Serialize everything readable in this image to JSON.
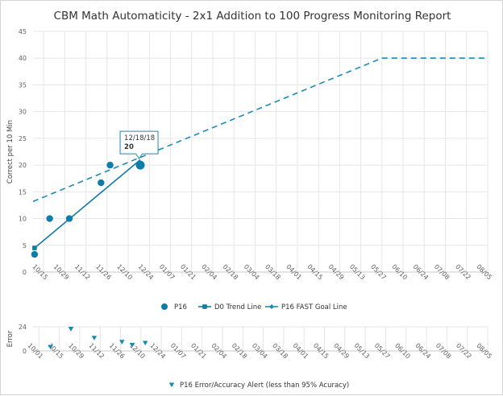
{
  "chart_data": [
    {
      "type": "line",
      "title": "CBM Math Automaticity - 2x1 Addition to 100 Progress Monitoring Report",
      "ylabel": "Correct per 10 Min",
      "ylim": [
        0,
        45
      ],
      "yticks": [
        0,
        5,
        10,
        15,
        20,
        25,
        30,
        35,
        40,
        45
      ],
      "x_axis_type": "date",
      "xlim": [
        "2018-10-08",
        "2019-08-05"
      ],
      "xtick_labels": [
        "10/15",
        "10/29",
        "11/12",
        "11/26",
        "12/10",
        "12/24",
        "01/07",
        "01/21",
        "02/04",
        "02/18",
        "03/04",
        "03/18",
        "04/01",
        "04/15",
        "04/29",
        "05/13",
        "05/27",
        "06/10",
        "06/24",
        "07/08",
        "07/22",
        "08/05"
      ],
      "xtick_dates": [
        "2018-10-15",
        "2018-10-29",
        "2018-11-12",
        "2018-11-26",
        "2018-12-10",
        "2018-12-24",
        "2019-01-07",
        "2019-01-21",
        "2019-02-04",
        "2019-02-18",
        "2019-03-04",
        "2019-03-18",
        "2019-04-01",
        "2019-04-15",
        "2019-04-29",
        "2019-05-13",
        "2019-05-27",
        "2019-06-10",
        "2019-06-24",
        "2019-07-08",
        "2019-07-22",
        "2019-08-05"
      ],
      "grid": true,
      "legend_position": "bottom",
      "series": [
        {
          "name": "P16",
          "style": "scatter",
          "marker": "circle",
          "color": "#0e7ca8",
          "points": [
            {
              "x": "2018-10-09",
              "y": 3.3
            },
            {
              "x": "2018-10-19",
              "y": 10
            },
            {
              "x": "2018-11-01",
              "y": 10
            },
            {
              "x": "2018-11-22",
              "y": 16.7
            },
            {
              "x": "2018-11-28",
              "y": 20
            },
            {
              "x": "2018-12-18",
              "y": 20
            }
          ]
        },
        {
          "name": "D0 Trend Line",
          "style": "line",
          "marker": "square",
          "color": "#0e7ca8",
          "points": [
            {
              "x": "2018-10-09",
              "y": 4.5
            },
            {
              "x": "2018-12-18",
              "y": 21
            }
          ]
        },
        {
          "name": "P16 FAST Goal Line",
          "style": "dashed",
          "marker": "diamond",
          "color": "#1e8ab5",
          "points": [
            {
              "x": "2018-10-08",
              "y": 13.2
            },
            {
              "x": "2019-05-27",
              "y": 40
            },
            {
              "x": "2019-08-05",
              "y": 40
            }
          ]
        }
      ],
      "tooltip": {
        "date": "12/18/18",
        "value": "20",
        "x": "2018-12-18",
        "y": 20
      }
    },
    {
      "type": "scatter",
      "ylabel": "Error",
      "ylim": [
        0,
        24
      ],
      "yticks": [
        0,
        24
      ],
      "x_axis_type": "date",
      "xlim": [
        "2018-09-27",
        "2019-08-05"
      ],
      "xtick_labels": [
        "10/01",
        "10/15",
        "10/29",
        "11/12",
        "11/26",
        "12/10",
        "12/24",
        "01/07",
        "01/21",
        "02/04",
        "02/18",
        "03/04",
        "03/18",
        "04/01",
        "04/15",
        "04/29",
        "05/13",
        "05/27",
        "06/10",
        "06/24",
        "07/08",
        "07/22",
        "08/05"
      ],
      "xtick_dates": [
        "2018-10-01",
        "2018-10-15",
        "2018-10-29",
        "2018-11-12",
        "2018-11-26",
        "2018-12-10",
        "2018-12-24",
        "2019-01-07",
        "2019-01-21",
        "2019-02-04",
        "2019-02-18",
        "2019-03-04",
        "2019-03-18",
        "2019-04-01",
        "2019-04-15",
        "2019-04-29",
        "2019-05-13",
        "2019-05-27",
        "2019-06-10",
        "2019-06-24",
        "2019-07-08",
        "2019-07-22",
        "2019-08-05"
      ],
      "grid": true,
      "legend_position": "bottom",
      "series": [
        {
          "name": "P16 Error/Accuracy Alert (less than 95% Acuracy)",
          "marker": "triangle-down",
          "color": "#148ab0",
          "points": [
            {
              "x": "2018-10-09",
              "y": 4
            },
            {
              "x": "2018-10-23",
              "y": 22
            },
            {
              "x": "2018-11-08",
              "y": 13
            },
            {
              "x": "2018-11-27",
              "y": 9
            },
            {
              "x": "2018-12-04",
              "y": 6
            },
            {
              "x": "2018-12-13",
              "y": 8
            }
          ]
        }
      ]
    }
  ]
}
